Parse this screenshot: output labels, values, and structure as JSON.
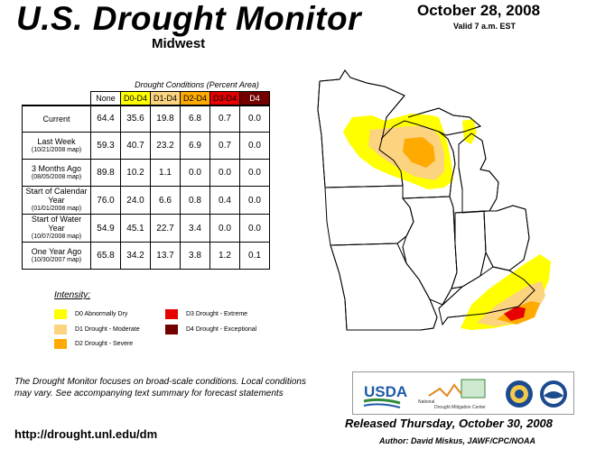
{
  "header": {
    "title": "U.S. Drought Monitor",
    "region": "Midwest",
    "date": "October 28, 2008",
    "valid": "Valid 7 a.m. EST"
  },
  "table": {
    "caption": "Drought Conditions (Percent Area)",
    "columns": [
      "None",
      "D0-D4",
      "D1-D4",
      "D2-D4",
      "D3-D4",
      "D4"
    ],
    "column_colors": [
      "#ffffff",
      "#ffff00",
      "#fcd37f",
      "#ffaa00",
      "#e60000",
      "#730000"
    ],
    "column_text_colors": [
      "#000000",
      "#000000",
      "#000000",
      "#000000",
      "#000000",
      "#ffffff"
    ],
    "rows": [
      {
        "label": "Current",
        "sub": "",
        "values": [
          "64.4",
          "35.6",
          "19.8",
          "6.8",
          "0.7",
          "0.0"
        ]
      },
      {
        "label": "Last Week",
        "sub": "(10/21/2008 map)",
        "values": [
          "59.3",
          "40.7",
          "23.2",
          "6.9",
          "0.7",
          "0.0"
        ]
      },
      {
        "label": "3 Months Ago",
        "sub": "(08/05/2008 map)",
        "values": [
          "89.8",
          "10.2",
          "1.1",
          "0.0",
          "0.0",
          "0.0"
        ]
      },
      {
        "label": "Start of Calendar Year",
        "sub": "(01/01/2008 map)",
        "values": [
          "76.0",
          "24.0",
          "6.6",
          "0.8",
          "0.4",
          "0.0"
        ]
      },
      {
        "label": "Start of Water Year",
        "sub": "(10/07/2008 map)",
        "values": [
          "54.9",
          "45.1",
          "22.7",
          "3.4",
          "0.0",
          "0.0"
        ]
      },
      {
        "label": "One Year Ago",
        "sub": "(10/30/2007 map)",
        "values": [
          "65.8",
          "34.2",
          "13.7",
          "3.8",
          "1.2",
          "0.1"
        ]
      }
    ]
  },
  "legend": {
    "title": "Intensity:",
    "items": [
      {
        "label": "D0 Abnormally Dry",
        "color": "#ffff00"
      },
      {
        "label": "D1 Drought - Moderate",
        "color": "#fcd37f"
      },
      {
        "label": "D2 Drought - Severe",
        "color": "#ffaa00"
      },
      {
        "label": "D3 Drought - Extreme",
        "color": "#e60000"
      },
      {
        "label": "D4 Drought - Exceptional",
        "color": "#730000"
      }
    ]
  },
  "footer": {
    "note": "The Drought Monitor focuses on broad-scale conditions. Local conditions may vary. See accompanying text summary for forecast statements",
    "url": "http://drought.unl.edu/dm",
    "released": "Released Thursday, October 30, 2008",
    "author": "Author: David Miskus, JAWF/CPC/NOAA",
    "logos": {
      "usda": "USDA",
      "ndmc_line1": "National",
      "ndmc_line2": "Drought Mitigation Center"
    }
  }
}
